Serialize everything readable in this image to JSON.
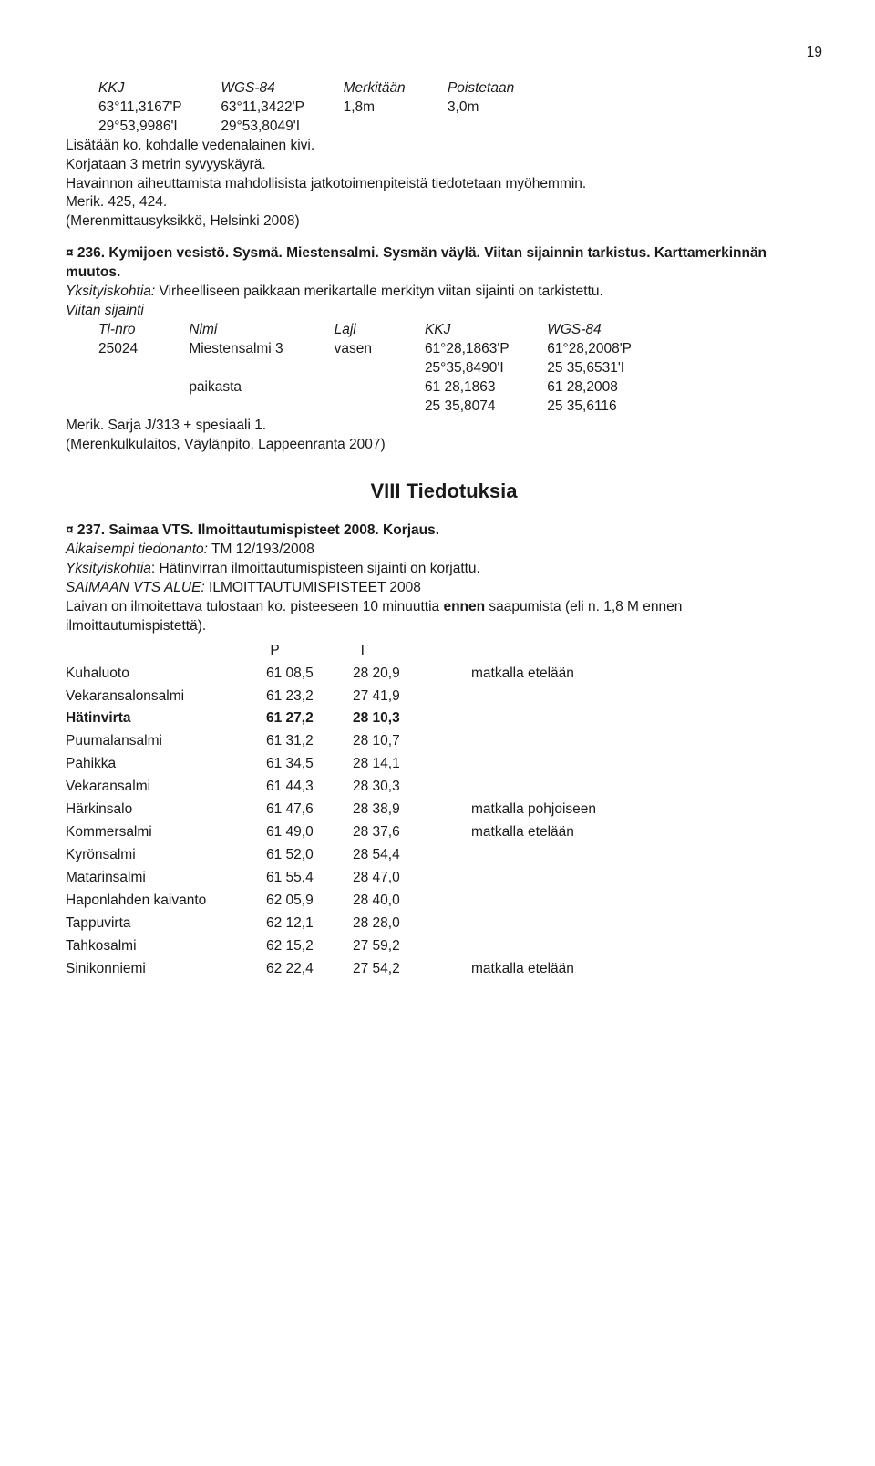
{
  "pageNumber": "19",
  "block1": {
    "headers": {
      "c1": "KKJ",
      "c2": "WGS-84",
      "c3": "Merkitään",
      "c4": "Poistetaan"
    },
    "r1": {
      "c1": "63°11,3167'P",
      "c2": "63°11,3422'P",
      "c3": "1,8m",
      "c4": "3,0m"
    },
    "r2": {
      "c1": "29°53,9986'I",
      "c2": "29°53,8049'I"
    },
    "line1a": "Lisätään ko. kohdalle vedenalainen kivi.",
    "line1b": "Korjataan 3 metrin syvyyskäyrä.",
    "line1c": "Havainnon aiheuttamista mahdollisista jatkotoimenpiteistä tiedotetaan myöhemmin.",
    "line1d": "Merik. 425, 424.",
    "line1e": "(Merenmittausyksikkö, Helsinki 2008)"
  },
  "entry236": {
    "marker": "¤ 236.",
    "title": " Kymijoen vesistö. Sysmä. Miestensalmi. Sysmän väylä. Viitan sijainnin tarkistus. Karttamerkinnän muutos.",
    "detLabel": "Yksityiskohtia:",
    "detText": " Virheelliseen paikkaan merikartalle merkityn viitan sijainti on tarkistettu.",
    "vs": "Viitan sijainti",
    "hdr": {
      "c1": "Tl-nro",
      "c2": "Nimi",
      "c3": "Laji",
      "c4": "KKJ",
      "c5": "WGS-84"
    },
    "r1": {
      "c1": "25024",
      "c2": "Miestensalmi 3",
      "c3": "vasen",
      "c4": "61°28,1863'P",
      "c5": "61°28,2008'P"
    },
    "r2": {
      "c4": "25°35,8490'I",
      "c5": "25 35,6531'I"
    },
    "r3": {
      "c2": "paikasta",
      "c4": "61 28,1863",
      "c5": "61 28,2008"
    },
    "r4": {
      "c4": "25 35,8074",
      "c5": "25 35,6116"
    },
    "line_a": "Merik. Sarja J/313 + spesiaali 1.",
    "line_b": "(Merenkulkulaitos, Väylänpito, Lappeenranta 2007)"
  },
  "sectionTitle": "VIII Tiedotuksia",
  "entry237": {
    "marker": "¤ 237.",
    "title": " Saimaa VTS. Ilmoittautumispisteet 2008. Korjaus.",
    "prevLabel": "Aikaisempi tiedonanto:",
    "prevText": " TM 12/193/2008",
    "detLabel": "Yksityiskohtia",
    "detText": ": Hätinvirran ilmoittautumispisteen sijainti on korjattu.",
    "line_a": "SAIMAAN VTS ALUE:",
    "line_a2": " ILMOITTAUTUMISPISTEET 2008",
    "line_b1": "Laivan on ilmoitettava tulostaan ko. pisteeseen 10 minuuttia ",
    "line_b_bold": "ennen",
    "line_b2": "  saapumista (eli n. 1,8 M ennen ilmoittautumispistettä).",
    "tblHdr": {
      "c2": "P",
      "c3": "I"
    },
    "rows": [
      {
        "name": "Kuhaluoto",
        "p": "61 08,5",
        "i": "28 20,9",
        "note": "matkalla etelään",
        "bold": false
      },
      {
        "name": "Vekaransalonsalmi",
        "p": "61 23,2",
        "i": "27 41,9",
        "note": "",
        "bold": false
      },
      {
        "name": "Hätinvirta",
        "p": "61 27,2",
        "i": "28 10,3",
        "note": "",
        "bold": true
      },
      {
        "name": "Puumalansalmi",
        "p": "61 31,2",
        "i": "28 10,7",
        "note": "",
        "bold": false
      },
      {
        "name": "Pahikka",
        "p": "61 34,5",
        "i": "28 14,1",
        "note": "",
        "bold": false
      },
      {
        "name": "Vekaransalmi",
        "p": "61 44,3",
        "i": "28 30,3",
        "note": "",
        "bold": false
      },
      {
        "name": "Härkinsalo",
        "p": "61 47,6",
        "i": "28 38,9",
        "note": "matkalla pohjoiseen",
        "bold": false
      },
      {
        "name": "Kommersalmi",
        "p": "61 49,0",
        "i": "28 37,6",
        "note": "matkalla etelään",
        "bold": false
      },
      {
        "name": "Kyrönsalmi",
        "p": "61 52,0",
        "i": "28 54,4",
        "note": "",
        "bold": false
      },
      {
        "name": "Matarinsalmi",
        "p": "61 55,4",
        "i": "28 47,0",
        "note": "",
        "bold": false
      },
      {
        "name": "Haponlahden kaivanto",
        "p": "62 05,9",
        "i": "28 40,0",
        "note": "",
        "bold": false
      },
      {
        "name": "Tappuvirta",
        "p": "62 12,1",
        "i": "28 28,0",
        "note": "",
        "bold": false
      },
      {
        "name": "Tahkosalmi",
        "p": "62 15,2",
        "i": "27 59,2",
        "note": "",
        "bold": false
      },
      {
        "name": "Sinikonniemi",
        "p": "62 22,4",
        "i": "27 54,2",
        "note": "matkalla etelään",
        "bold": false
      }
    ]
  }
}
